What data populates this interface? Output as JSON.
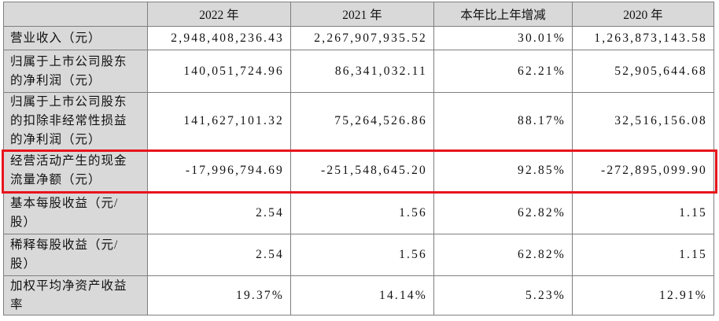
{
  "table": {
    "header": [
      "",
      "2022 年",
      "2021 年",
      "本年比上年增减",
      "2020 年"
    ],
    "rows": [
      {
        "label": [
          "营业收入（元）"
        ],
        "cells": [
          "2,948,408,236.43",
          "2,267,907,935.52",
          "30.01%",
          "1,263,873,143.58"
        ]
      },
      {
        "label": [
          "归属于上市公司股东",
          "的净利润（元）"
        ],
        "cells": [
          "140,051,724.96",
          "86,341,032.11",
          "62.21%",
          "52,905,644.68"
        ]
      },
      {
        "label": [
          "归属于上市公司股东",
          "的扣除非经常性损益",
          "的净利润（元）"
        ],
        "cells": [
          "141,627,101.32",
          "75,264,526.86",
          "88.17%",
          "32,516,156.08"
        ]
      },
      {
        "label": [
          "经营活动产生的现金",
          "流量净额（元）"
        ],
        "cells": [
          "-17,996,794.69",
          "-251,548,645.20",
          "92.85%",
          "-272,895,099.90"
        ]
      },
      {
        "label": [
          "基本每股收益（元/",
          "股）"
        ],
        "cells": [
          "2.54",
          "1.56",
          "62.82%",
          "1.15"
        ]
      },
      {
        "label": [
          "稀释每股收益（元/",
          "股）"
        ],
        "cells": [
          "2.54",
          "1.56",
          "62.82%",
          "1.15"
        ]
      },
      {
        "label": [
          "加权平均净资产收益",
          "率"
        ],
        "cells": [
          "19.37%",
          "14.14%",
          "5.23%",
          "12.91%"
        ]
      }
    ]
  }
}
